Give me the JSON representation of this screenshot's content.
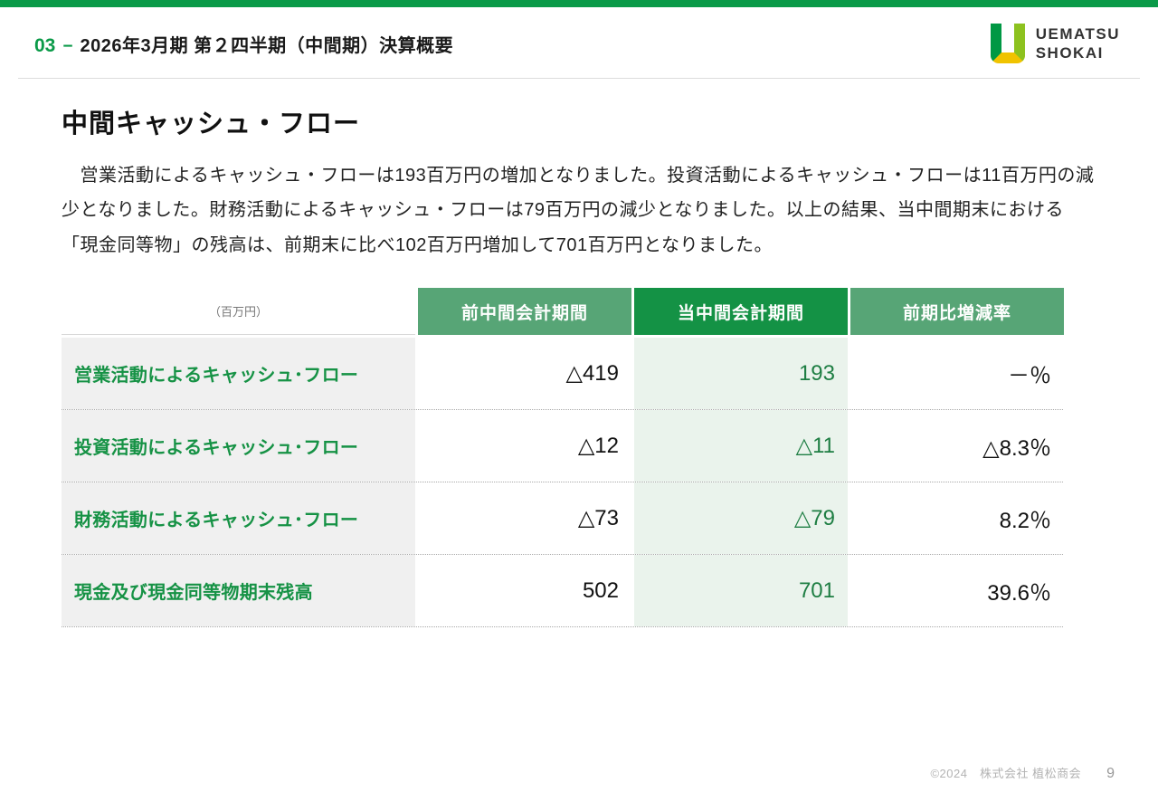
{
  "header": {
    "section_number": "03",
    "separator": "−",
    "section_title": "2026年3月期 第２四半期（中間期）決算概要",
    "logo": {
      "line1": "UEMATSU",
      "line2": "SHOKAI"
    }
  },
  "main": {
    "title": "中間キャッシュ・フロー",
    "paragraph": "　営業活動によるキャッシュ・フローは193百万円の増加となりました。投資活動によるキャッシュ・フローは11百万円の減少となりました。財務活動によるキャッシュ・フローは79百万円の減少となりました。以上の結果、当中間期末における「現金同等物」の残高は、前期末に比べ102百万円増加して701百万円となりました。"
  },
  "table": {
    "unit_label": "（百万円）",
    "columns": [
      "前中間会計期間",
      "当中間会計期間",
      "前期比増減率"
    ],
    "rows": [
      {
        "label": "営業活動によるキャッシュ･フロー",
        "previous": "△419",
        "current": "193",
        "change": "－％"
      },
      {
        "label": "投資活動によるキャッシュ･フロー",
        "previous": "△12",
        "current": "△11",
        "change": "△8.3％"
      },
      {
        "label": "財務活動によるキャッシュ･フロー",
        "previous": "△73",
        "current": "△79",
        "change": "8.2％"
      },
      {
        "label": "現金及び現金同等物期末残高",
        "previous": "502",
        "current": "701",
        "change": "39.6％"
      }
    ]
  },
  "footer": {
    "copyright": "©2024　株式会社 植松商会",
    "page_number": "9"
  },
  "colors": {
    "accent_green": "#0a9a48",
    "header_light_green": "#57a576",
    "header_dark_green": "#149245",
    "cell_light_green": "#eaf3ec",
    "label_green": "#169245",
    "logo_yellow": "#f0c300",
    "logo_lime": "#8dc21f"
  }
}
